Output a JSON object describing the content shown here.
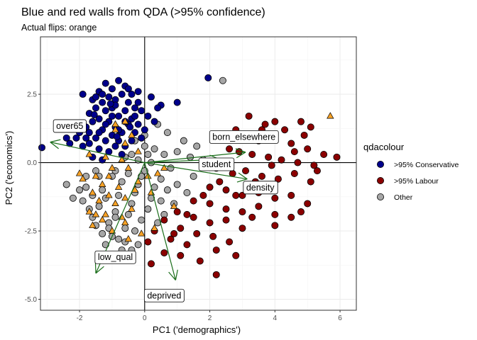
{
  "chart_data": {
    "type": "scatter",
    "title": "Blue and red walls from QDA (>95% confidence)",
    "subtitle": "Actual flips: orange",
    "xlabel": "PC1 ('demographics')",
    "ylabel": "PC2 ('economics')",
    "xlim": [
      -3.2,
      6.5
    ],
    "ylim": [
      -5.4,
      4.6
    ],
    "x_ticks": [
      -2,
      0,
      2,
      4,
      6
    ],
    "y_ticks": [
      -5.0,
      -2.5,
      0.0,
      2.5
    ],
    "x_tick_labels": [
      "-2",
      "0",
      "2",
      "4",
      "6"
    ],
    "y_tick_labels": [
      "-5.0",
      "-2.5",
      "0.0",
      "2.5"
    ],
    "grid": true,
    "legend": {
      "title": "qdacolour",
      "position": "right",
      "entries": [
        {
          "label": ">95% Conservative",
          "color": "#00008b"
        },
        {
          "label": ">95% Labour",
          "color": "#8b0000"
        },
        {
          "label": "Other",
          "color": "#a6a6a6"
        }
      ]
    },
    "flip_color": "#f7a125",
    "arrow_color": "#1a6e1a",
    "arrows": [
      {
        "label": "over65",
        "x": -2.9,
        "y": 0.75,
        "label_x": -2.3,
        "label_y": 1.35
      },
      {
        "label": "born_elsewhere",
        "x": 3.1,
        "y": 0.38,
        "label_x": 3.05,
        "label_y": 0.95
      },
      {
        "label": "student",
        "x": 2.3,
        "y": 0.12,
        "label_x": 2.2,
        "label_y": -0.05
      },
      {
        "label": "density",
        "x": 3.15,
        "y": -0.6,
        "label_x": 3.55,
        "label_y": -0.9
      },
      {
        "label": "low_qual",
        "x": -1.5,
        "y": -4.05,
        "label_x": -0.9,
        "label_y": -3.45
      },
      {
        "label": "deprived",
        "x": 0.95,
        "y": -4.3,
        "label_x": 0.6,
        "label_y": -4.85
      }
    ],
    "series": [
      {
        "name": ">95% Conservative",
        "points": [
          [
            -1.9,
            2.5
          ],
          [
            -1.6,
            2.3
          ],
          [
            -1.4,
            2.6
          ],
          [
            -1.2,
            2.9
          ],
          [
            -1.0,
            2.7
          ],
          [
            -0.8,
            3.0
          ],
          [
            -0.6,
            2.8
          ],
          [
            -0.4,
            2.5
          ],
          [
            -0.2,
            2.6
          ],
          [
            0.2,
            2.4
          ],
          [
            0.5,
            2.1
          ],
          [
            1.0,
            2.2
          ],
          [
            -1.5,
            2.0
          ],
          [
            -1.3,
            2.2
          ],
          [
            -1.1,
            2.4
          ],
          [
            -0.9,
            2.3
          ],
          [
            -0.7,
            2.5
          ],
          [
            -0.5,
            2.2
          ],
          [
            -0.3,
            2.0
          ],
          [
            -0.1,
            1.9
          ],
          [
            0.1,
            1.7
          ],
          [
            0.3,
            1.5
          ],
          [
            -1.7,
            1.8
          ],
          [
            -1.4,
            1.6
          ],
          [
            -1.2,
            1.9
          ],
          [
            -1.0,
            2.0
          ],
          [
            -0.8,
            1.7
          ],
          [
            -0.6,
            1.9
          ],
          [
            -0.4,
            1.6
          ],
          [
            -0.2,
            1.4
          ],
          [
            0.0,
            1.2
          ],
          [
            -1.8,
            1.3
          ],
          [
            -1.6,
            1.5
          ],
          [
            -1.3,
            1.2
          ],
          [
            -1.1,
            1.5
          ],
          [
            -0.9,
            1.3
          ],
          [
            -0.7,
            1.1
          ],
          [
            -0.5,
            1.4
          ],
          [
            -0.3,
            1.1
          ],
          [
            -0.1,
            0.9
          ],
          [
            -2.0,
            1.1
          ],
          [
            -1.5,
            0.9
          ],
          [
            -1.2,
            0.8
          ],
          [
            -1.0,
            1.0
          ],
          [
            -0.8,
            0.8
          ],
          [
            -0.6,
            0.6
          ],
          [
            -0.4,
            0.8
          ],
          [
            -1.9,
            0.6
          ],
          [
            -1.7,
            0.7
          ],
          [
            -1.4,
            0.5
          ],
          [
            -1.1,
            0.4
          ],
          [
            -0.9,
            0.6
          ],
          [
            -0.7,
            0.3
          ],
          [
            -1.6,
            0.2
          ],
          [
            -1.3,
            0.1
          ],
          [
            -2.1,
            0.9
          ],
          [
            -2.3,
            0.7
          ],
          [
            -1.8,
            0.9
          ],
          [
            -0.5,
            2.7
          ],
          [
            -1.3,
            2.5
          ],
          [
            -0.9,
            2.1
          ],
          [
            -0.2,
            2.2
          ],
          [
            -1.5,
            2.4
          ],
          [
            -1.0,
            1.7
          ],
          [
            -0.6,
            1.5
          ],
          [
            -1.2,
            1.4
          ],
          [
            -1.4,
            1.1
          ],
          [
            -0.8,
            1.2
          ],
          [
            -0.3,
            1.7
          ],
          [
            0.4,
            2.0
          ],
          [
            -2.4,
            0.9
          ],
          [
            1.95,
            3.1
          ],
          [
            -3.5,
            0.55
          ],
          [
            -1.7,
            1.1
          ],
          [
            -0.85,
            0.95
          ],
          [
            -1.05,
            2.15
          ],
          [
            -0.45,
            1.3
          ],
          [
            -1.55,
            1.75
          ]
        ]
      },
      {
        "name": ">95% Labour",
        "points": [
          [
            3.2,
            1.7
          ],
          [
            3.6,
            1.2
          ],
          [
            4.0,
            1.5
          ],
          [
            4.3,
            1.2
          ],
          [
            4.8,
            1.5
          ],
          [
            5.1,
            1.3
          ],
          [
            3.0,
            1.0
          ],
          [
            3.5,
            0.8
          ],
          [
            4.0,
            0.9
          ],
          [
            4.5,
            0.7
          ],
          [
            5.0,
            0.5
          ],
          [
            5.5,
            0.3
          ],
          [
            2.9,
            0.4
          ],
          [
            3.3,
            0.3
          ],
          [
            3.8,
            0.2
          ],
          [
            4.2,
            0.1
          ],
          [
            4.7,
            0.0
          ],
          [
            5.2,
            -0.1
          ],
          [
            5.9,
            0.2
          ],
          [
            2.2,
            -0.2
          ],
          [
            2.7,
            -0.4
          ],
          [
            3.1,
            -0.3
          ],
          [
            3.6,
            -0.5
          ],
          [
            4.1,
            -0.6
          ],
          [
            4.6,
            -0.4
          ],
          [
            5.1,
            -0.7
          ],
          [
            2.0,
            -0.9
          ],
          [
            2.5,
            -1.0
          ],
          [
            3.0,
            -1.2
          ],
          [
            3.5,
            -1.1
          ],
          [
            4.0,
            -1.3
          ],
          [
            4.5,
            -1.2
          ],
          [
            5.0,
            -1.5
          ],
          [
            1.5,
            -1.4
          ],
          [
            2.0,
            -1.5
          ],
          [
            2.5,
            -1.7
          ],
          [
            3.0,
            -1.8
          ],
          [
            3.5,
            -1.6
          ],
          [
            4.0,
            -1.9
          ],
          [
            4.5,
            -2.0
          ],
          [
            1.0,
            -1.8
          ],
          [
            1.5,
            -2.0
          ],
          [
            2.0,
            -2.2
          ],
          [
            2.5,
            -2.1
          ],
          [
            3.0,
            -2.4
          ],
          [
            0.6,
            -2.1
          ],
          [
            1.1,
            -2.4
          ],
          [
            1.6,
            -2.6
          ],
          [
            2.1,
            -2.7
          ],
          [
            0.3,
            -2.5
          ],
          [
            0.8,
            -2.8
          ],
          [
            1.3,
            -3.0
          ],
          [
            0.1,
            -2.9
          ],
          [
            0.6,
            -3.3
          ],
          [
            1.1,
            -3.4
          ],
          [
            0.2,
            -3.7
          ],
          [
            2.2,
            -3.2
          ],
          [
            2.8,
            -3.4
          ],
          [
            4.0,
            -2.3
          ],
          [
            4.8,
            -1.8
          ],
          [
            5.3,
            -0.3
          ],
          [
            4.6,
            0.4
          ],
          [
            3.9,
            -0.1
          ],
          [
            3.4,
            -0.7
          ],
          [
            2.8,
            -1.2
          ],
          [
            2.3,
            -0.7
          ],
          [
            1.8,
            -1.2
          ],
          [
            1.3,
            -1.9
          ],
          [
            0.9,
            -2.6
          ],
          [
            2.4,
            0.0
          ],
          [
            3.7,
            1.4
          ],
          [
            4.9,
            1.0
          ],
          [
            2.6,
            0.5
          ],
          [
            2.2,
            -4.1
          ],
          [
            1.7,
            -3.6
          ],
          [
            2.8,
            1.2
          ],
          [
            3.3,
            -2.0
          ],
          [
            2.6,
            -2.9
          ]
        ]
      },
      {
        "name": "Other",
        "points": [
          [
            -0.3,
            0.8
          ],
          [
            0.0,
            0.6
          ],
          [
            0.3,
            0.5
          ],
          [
            -0.6,
            0.2
          ],
          [
            -0.2,
            0.1
          ],
          [
            0.2,
            0.0
          ],
          [
            0.6,
            0.3
          ],
          [
            1.0,
            0.4
          ],
          [
            1.4,
            0.2
          ],
          [
            1.8,
            0.1
          ],
          [
            -1.5,
            -0.3
          ],
          [
            -1.0,
            -0.5
          ],
          [
            -0.5,
            -0.4
          ],
          [
            0.0,
            -0.3
          ],
          [
            0.5,
            -0.6
          ],
          [
            1.0,
            -0.8
          ],
          [
            1.5,
            -0.5
          ],
          [
            -2.4,
            -0.8
          ],
          [
            -1.8,
            -0.9
          ],
          [
            -1.3,
            -1.0
          ],
          [
            -0.8,
            -1.2
          ],
          [
            -0.3,
            -1.1
          ],
          [
            0.2,
            -1.3
          ],
          [
            0.7,
            -1.0
          ],
          [
            -1.9,
            -1.4
          ],
          [
            -1.4,
            -1.6
          ],
          [
            -0.9,
            -1.8
          ],
          [
            -0.4,
            -1.5
          ],
          [
            0.1,
            -1.7
          ],
          [
            0.6,
            -1.9
          ],
          [
            -1.6,
            -2.0
          ],
          [
            -1.1,
            -2.2
          ],
          [
            -0.6,
            -2.4
          ],
          [
            -0.1,
            -2.1
          ],
          [
            -1.3,
            -2.6
          ],
          [
            -0.8,
            -2.8
          ],
          [
            -0.3,
            -2.5
          ],
          [
            -1.2,
            -3.0
          ],
          [
            -0.7,
            -3.2
          ],
          [
            -0.2,
            -3.0
          ],
          [
            -1.1,
            -2.4
          ],
          [
            -1.7,
            -1.7
          ],
          [
            -2.0,
            -1.0
          ],
          [
            -1.2,
            -1.3
          ],
          [
            -0.7,
            -0.7
          ],
          [
            -0.2,
            -0.8
          ],
          [
            0.3,
            -0.9
          ],
          [
            0.8,
            -0.2
          ],
          [
            1.2,
            0.8
          ],
          [
            1.6,
            0.6
          ],
          [
            0.7,
            1.1
          ],
          [
            0.4,
            1.4
          ],
          [
            2.4,
            3.0
          ],
          [
            0.9,
            -1.5
          ],
          [
            -0.5,
            -1.9
          ],
          [
            -1.5,
            -2.3
          ],
          [
            -1.0,
            -2.7
          ],
          [
            -0.4,
            -3.2
          ],
          [
            0.4,
            -2.2
          ],
          [
            -0.9,
            -0.3
          ],
          [
            -0.4,
            0.3
          ],
          [
            0.1,
            0.3
          ],
          [
            -1.6,
            -1.2
          ],
          [
            -2.2,
            -1.3
          ],
          [
            -0.6,
            -2.9
          ],
          [
            -1.4,
            -0.5
          ],
          [
            -0.1,
            -0.5
          ],
          [
            0.5,
            -1.4
          ],
          [
            1.3,
            -1.1
          ],
          [
            -0.9,
            -2.0
          ],
          [
            -1.8,
            -0.5
          ],
          [
            0.0,
            1.0
          ]
        ]
      },
      {
        "name": "flips",
        "points": [
          [
            -0.6,
            1.5
          ],
          [
            -0.9,
            1.2
          ],
          [
            -0.4,
            1.0
          ],
          [
            -0.2,
            0.4
          ],
          [
            -0.7,
            0.1
          ],
          [
            -1.2,
            0.2
          ],
          [
            -1.7,
            0.3
          ],
          [
            -1.0,
            -0.2
          ],
          [
            -0.5,
            -0.2
          ],
          [
            0.1,
            -0.5
          ],
          [
            -1.5,
            -0.5
          ],
          [
            -1.9,
            -0.6
          ],
          [
            -1.3,
            -0.8
          ],
          [
            -0.8,
            -0.9
          ],
          [
            -0.3,
            -1.0
          ],
          [
            -1.6,
            -1.1
          ],
          [
            -1.1,
            -1.2
          ],
          [
            -0.6,
            -1.3
          ],
          [
            -1.4,
            -1.4
          ],
          [
            -0.9,
            -1.5
          ],
          [
            -1.7,
            -1.8
          ],
          [
            -1.2,
            -1.9
          ],
          [
            -0.7,
            -2.0
          ],
          [
            -1.0,
            -2.5
          ],
          [
            -1.5,
            -1.9
          ],
          [
            -0.5,
            -2.8
          ],
          [
            0.9,
            -1.6
          ],
          [
            0.4,
            -0.4
          ],
          [
            -1.3,
            -2.1
          ],
          [
            -0.2,
            -0.7
          ],
          [
            0.6,
            -0.2
          ],
          [
            0.2,
            -1.1
          ],
          [
            -1.1,
            -0.5
          ],
          [
            -0.6,
            -2.2
          ],
          [
            -2.0,
            -0.4
          ],
          [
            -0.4,
            -1.7
          ],
          [
            0.3,
            -2.4
          ],
          [
            -0.1,
            -2.6
          ],
          [
            5.7,
            1.7
          ],
          [
            -1.6,
            -2.3
          ],
          [
            -0.9,
            1.4
          ],
          [
            -0.6,
            0.7
          ]
        ]
      }
    ]
  }
}
